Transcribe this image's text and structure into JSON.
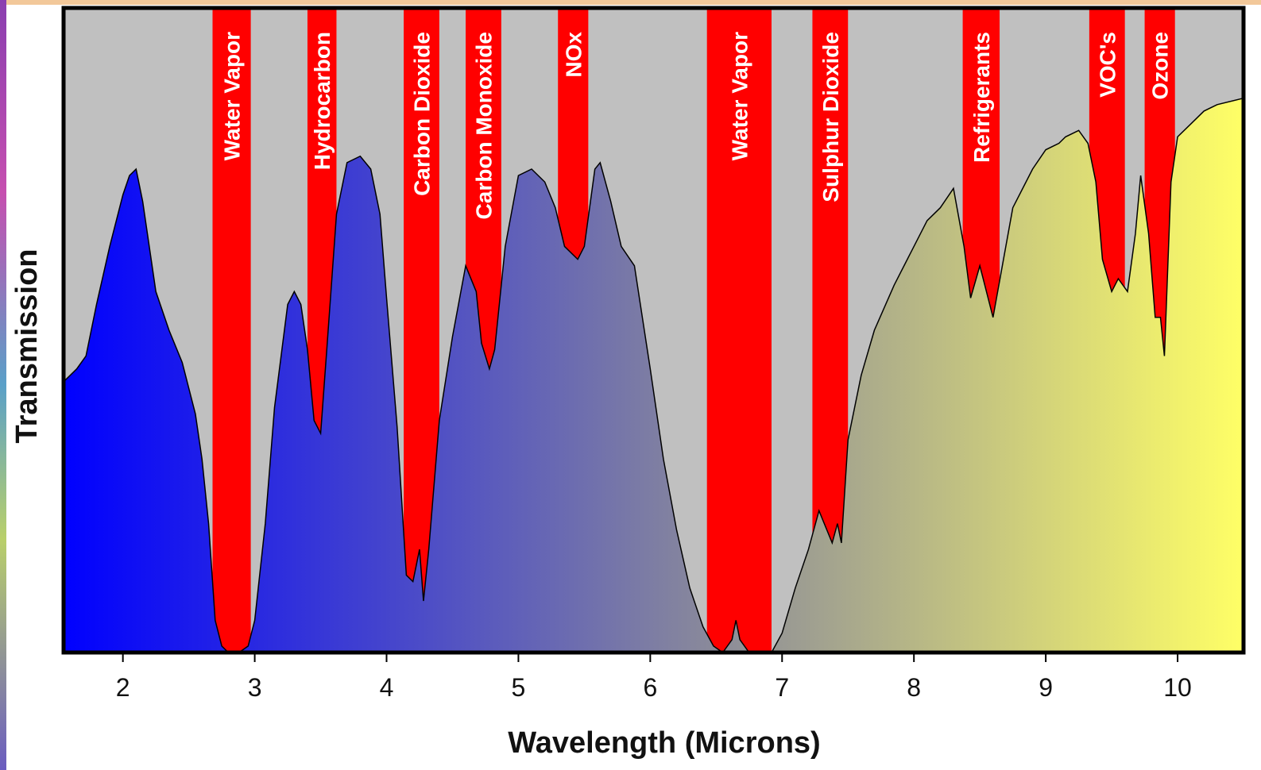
{
  "colors": {
    "background": "#c0c0c0",
    "frame": "#000000",
    "absorption": "#ff0000",
    "gradient_start": "#0000ff",
    "gradient_mid": "#8a8a9a",
    "gradient_end": "#ffff66"
  },
  "chart_data": {
    "type": "area",
    "title": "",
    "xlabel": "Wavelength (Microns)",
    "ylabel": "Transmission",
    "xlim": [
      1.55,
      10.5
    ],
    "ylim": [
      0,
      1
    ],
    "x_ticks": [
      2,
      3,
      4,
      5,
      6,
      7,
      8,
      9,
      10
    ],
    "x_tick_labels": [
      "2",
      "3",
      "4",
      "5",
      "6",
      "7",
      "8",
      "9",
      "10"
    ],
    "grid": false,
    "legend": "none",
    "series": [
      {
        "x": [
          1.55,
          1.65,
          1.72,
          1.8,
          1.9,
          2.0,
          2.05,
          2.1,
          2.15,
          2.25,
          2.35,
          2.45,
          2.55,
          2.6,
          2.65,
          2.7,
          2.75,
          2.8,
          2.88,
          2.95,
          3.0,
          3.08,
          3.15,
          3.25,
          3.3,
          3.35,
          3.4,
          3.45,
          3.5,
          3.55,
          3.62,
          3.7,
          3.8,
          3.88,
          3.95,
          4.0,
          4.08,
          4.15,
          4.2,
          4.25,
          4.28,
          4.32,
          4.4,
          4.5,
          4.6,
          4.68,
          4.72,
          4.78,
          4.82,
          4.9,
          5.0,
          5.1,
          5.2,
          5.28,
          5.35,
          5.45,
          5.5,
          5.58,
          5.62,
          5.7,
          5.78,
          5.88,
          6.0,
          6.1,
          6.2,
          6.3,
          6.4,
          6.48,
          6.55,
          6.62,
          6.65,
          6.68,
          6.75,
          6.85,
          6.92,
          7.0,
          7.1,
          7.2,
          7.28,
          7.32,
          7.38,
          7.42,
          7.45,
          7.5,
          7.6,
          7.7,
          7.85,
          8.0,
          8.1,
          8.2,
          8.3,
          8.38,
          8.43,
          8.5,
          8.6,
          8.75,
          8.9,
          9.0,
          9.1,
          9.15,
          9.25,
          9.32,
          9.38,
          9.43,
          9.5,
          9.55,
          9.62,
          9.68,
          9.72,
          9.78,
          9.83,
          9.87,
          9.9,
          9.95,
          10.0,
          10.1,
          10.2,
          10.3,
          10.5
        ],
        "y": [
          0.42,
          0.44,
          0.46,
          0.54,
          0.63,
          0.71,
          0.74,
          0.75,
          0.7,
          0.56,
          0.5,
          0.45,
          0.37,
          0.3,
          0.2,
          0.05,
          0.01,
          0.0,
          0.0,
          0.01,
          0.05,
          0.2,
          0.38,
          0.54,
          0.56,
          0.54,
          0.47,
          0.36,
          0.34,
          0.48,
          0.68,
          0.76,
          0.77,
          0.75,
          0.68,
          0.55,
          0.35,
          0.12,
          0.11,
          0.16,
          0.08,
          0.16,
          0.36,
          0.49,
          0.6,
          0.56,
          0.48,
          0.44,
          0.47,
          0.63,
          0.74,
          0.75,
          0.73,
          0.69,
          0.63,
          0.61,
          0.63,
          0.75,
          0.76,
          0.7,
          0.63,
          0.6,
          0.44,
          0.3,
          0.19,
          0.1,
          0.04,
          0.01,
          0.0,
          0.02,
          0.05,
          0.02,
          0.0,
          0.0,
          0.0,
          0.03,
          0.1,
          0.16,
          0.22,
          0.2,
          0.17,
          0.2,
          0.17,
          0.33,
          0.43,
          0.5,
          0.57,
          0.63,
          0.67,
          0.69,
          0.72,
          0.63,
          0.55,
          0.6,
          0.52,
          0.69,
          0.75,
          0.78,
          0.79,
          0.8,
          0.81,
          0.79,
          0.73,
          0.61,
          0.56,
          0.58,
          0.56,
          0.65,
          0.74,
          0.65,
          0.52,
          0.52,
          0.46,
          0.73,
          0.8,
          0.82,
          0.84,
          0.85,
          0.86
        ]
      }
    ],
    "absorption_bands": [
      {
        "label": "Water Vapor",
        "x_start": 2.68,
        "x_end": 2.97,
        "y_bottom": 0.0
      },
      {
        "label": "Hydrocarbon",
        "x_start": 3.4,
        "x_end": 3.62,
        "y_bottom": 0.34
      },
      {
        "label": "Carbon Dioxide",
        "x_start": 4.13,
        "x_end": 4.4,
        "y_bottom": 0.08
      },
      {
        "label": "Carbon Monoxide",
        "x_start": 4.6,
        "x_end": 4.87,
        "y_bottom": 0.44
      },
      {
        "label": "NOx",
        "x_start": 5.3,
        "x_end": 5.53,
        "y_bottom": 0.61
      },
      {
        "label": "Water Vapor",
        "x_start": 6.43,
        "x_end": 6.92,
        "y_bottom": 0.0
      },
      {
        "label": "Sulphur Dioxide",
        "x_start": 7.23,
        "x_end": 7.5,
        "y_bottom": 0.17
      },
      {
        "label": "Refrigerants",
        "x_start": 8.37,
        "x_end": 8.65,
        "y_bottom": 0.52
      },
      {
        "label": "VOC's",
        "x_start": 9.33,
        "x_end": 9.6,
        "y_bottom": 0.56
      },
      {
        "label": "Ozone",
        "x_start": 9.75,
        "x_end": 9.98,
        "y_bottom": 0.46
      }
    ]
  }
}
